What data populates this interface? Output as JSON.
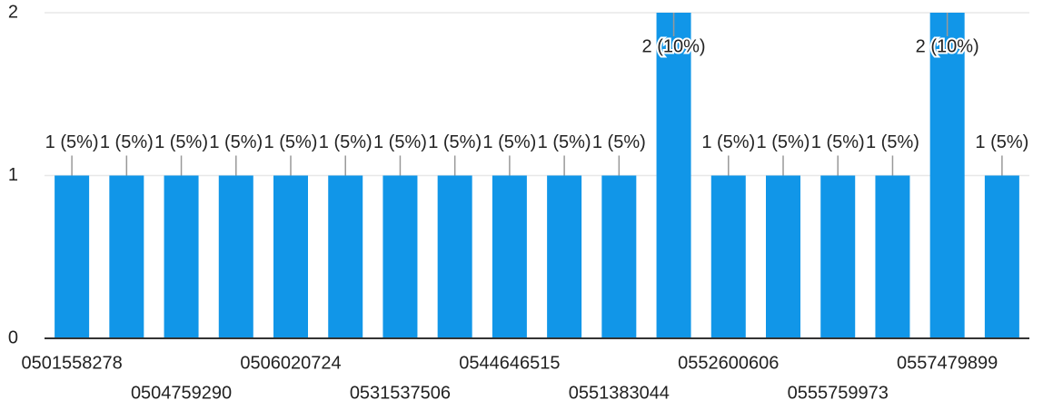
{
  "chart_data": {
    "type": "bar",
    "categories": [
      "0501558278",
      null,
      "0504759290",
      null,
      "0506020724",
      null,
      "0531537506",
      null,
      "0544646515",
      null,
      "0551383044",
      null,
      "0552600606",
      null,
      "0555759973",
      null,
      "0557479899",
      null
    ],
    "values": [
      1,
      1,
      1,
      1,
      1,
      1,
      1,
      1,
      1,
      1,
      1,
      2,
      1,
      1,
      1,
      1,
      2,
      1
    ],
    "value_labels": [
      "1 (5%)",
      "1 (5%)",
      "1 (5%)",
      "1 (5%)",
      "1 (5%)",
      "1 (5%)",
      "1 (5%)",
      "1 (5%)",
      "1 (5%)",
      "1 (5%)",
      "1 (5%)",
      "2 (10%)",
      "1 (5%)",
      "1 (5%)",
      "1 (5%)",
      "1 (5%)",
      "2 (10%)",
      "1 (5%)"
    ],
    "color": "#1196e8",
    "ylim": [
      0,
      2
    ],
    "yticks": [
      0,
      1,
      2
    ],
    "grid": true
  }
}
